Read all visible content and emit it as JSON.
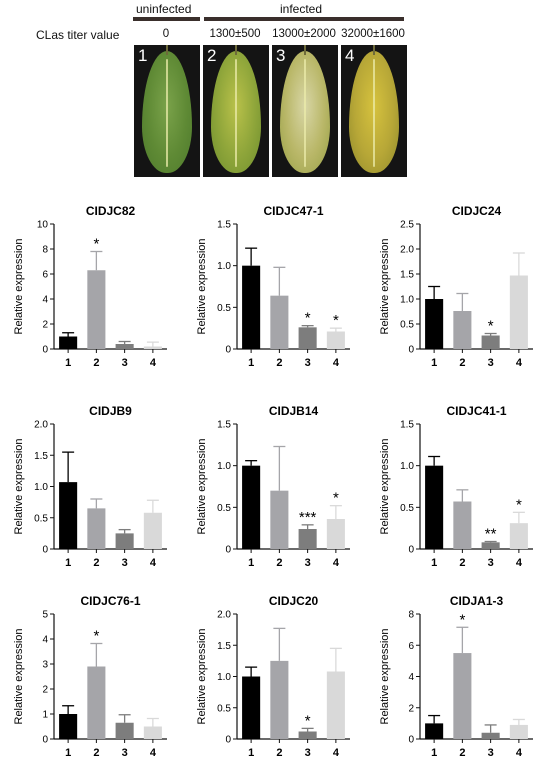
{
  "header": {
    "uninfected_label": "uninfected",
    "infected_label": "infected",
    "titer_label": "CLas titer value",
    "titer_values": [
      "0",
      "1300±500",
      "13000±2000",
      "32000±1600"
    ]
  },
  "leaf_panels": [
    {
      "number": "1",
      "colors": [
        "#7aa24a",
        "#5f8a35",
        "#4e7a2c"
      ]
    },
    {
      "number": "2",
      "colors": [
        "#b9c14a",
        "#8ea53a",
        "#6f8f2e"
      ]
    },
    {
      "number": "3",
      "colors": [
        "#d8d6a6",
        "#b9b768",
        "#97a045"
      ]
    },
    {
      "number": "4",
      "colors": [
        "#d6c23e",
        "#b7a737",
        "#8f8a2c"
      ]
    }
  ],
  "colors": {
    "bar_1": "#000000",
    "bar_2": "#a5a5a9",
    "bar_3": "#7d7d7d",
    "bar_4": "#d9d9d9"
  },
  "chart_data": [
    {
      "type": "bar",
      "title": "CIDJC82",
      "ylabel": "Relative expression",
      "categories": [
        "1",
        "2",
        "3",
        "4"
      ],
      "values": [
        1.0,
        6.3,
        0.4,
        0.2
      ],
      "errors": [
        0.3,
        1.5,
        0.2,
        0.35
      ],
      "significance": [
        "",
        "*",
        "",
        ""
      ],
      "ylim": [
        0,
        10
      ],
      "yticks": [
        "0",
        "2",
        "4",
        "6",
        "8",
        "10"
      ]
    },
    {
      "type": "bar",
      "title": "CIDJC47-1",
      "ylabel": "Relative expression",
      "categories": [
        "1",
        "2",
        "3",
        "4"
      ],
      "values": [
        1.0,
        0.64,
        0.26,
        0.21
      ],
      "errors": [
        0.21,
        0.34,
        0.02,
        0.04
      ],
      "significance": [
        "",
        "",
        "*",
        "*"
      ],
      "ylim": [
        0,
        1.5
      ],
      "yticks": [
        "0",
        "0.5",
        "1.0",
        "1.5"
      ]
    },
    {
      "type": "bar",
      "title": "CIDJC24",
      "ylabel": "Relative expression",
      "categories": [
        "1",
        "2",
        "3",
        "4"
      ],
      "values": [
        1.0,
        0.76,
        0.27,
        1.47
      ],
      "errors": [
        0.25,
        0.35,
        0.04,
        0.45
      ],
      "significance": [
        "",
        "",
        "*",
        ""
      ],
      "ylim": [
        0,
        2.5
      ],
      "yticks": [
        "0",
        "0.5",
        "1.0",
        "1.5",
        "2.0",
        "2.5"
      ]
    },
    {
      "type": "bar",
      "title": "CIDJB9",
      "ylabel": "Relative expression",
      "categories": [
        "1",
        "2",
        "3",
        "4"
      ],
      "values": [
        1.07,
        0.65,
        0.25,
        0.58
      ],
      "errors": [
        0.48,
        0.15,
        0.06,
        0.2
      ],
      "significance": [
        "",
        "",
        "",
        ""
      ],
      "ylim": [
        0,
        2.0
      ],
      "yticks": [
        "0",
        "0.5",
        "1.0",
        "1.5",
        "2.0"
      ]
    },
    {
      "type": "bar",
      "title": "CIDJB14",
      "ylabel": "Relative expression",
      "categories": [
        "1",
        "2",
        "3",
        "4"
      ],
      "values": [
        1.0,
        0.7,
        0.24,
        0.36
      ],
      "errors": [
        0.06,
        0.53,
        0.05,
        0.16
      ],
      "significance": [
        "",
        "",
        "***",
        "*"
      ],
      "ylim": [
        0,
        1.5
      ],
      "yticks": [
        "0",
        "0.5",
        "1.0",
        "1.5"
      ]
    },
    {
      "type": "bar",
      "title": "CIDJC41-1",
      "ylabel": "Relative expression",
      "categories": [
        "1",
        "2",
        "3",
        "4"
      ],
      "values": [
        1.0,
        0.57,
        0.08,
        0.31
      ],
      "errors": [
        0.11,
        0.14,
        0.01,
        0.13
      ],
      "significance": [
        "",
        "",
        "**",
        "*"
      ],
      "ylim": [
        0,
        1.5
      ],
      "yticks": [
        "0",
        "0.5",
        "1.0",
        "1.5"
      ]
    },
    {
      "type": "bar",
      "title": "CIDJC76-1",
      "ylabel": "Relative expression",
      "categories": [
        "1",
        "2",
        "3",
        "4"
      ],
      "values": [
        1.0,
        2.9,
        0.65,
        0.5
      ],
      "errors": [
        0.33,
        0.92,
        0.32,
        0.32
      ],
      "significance": [
        "",
        "*",
        "",
        ""
      ],
      "ylim": [
        0,
        5
      ],
      "yticks": [
        "0",
        "1",
        "2",
        "3",
        "4",
        "5"
      ]
    },
    {
      "type": "bar",
      "title": "CIDJC20",
      "ylabel": "Relative expression",
      "categories": [
        "1",
        "2",
        "3",
        "4"
      ],
      "values": [
        1.0,
        1.25,
        0.12,
        1.08
      ],
      "errors": [
        0.15,
        0.52,
        0.05,
        0.37
      ],
      "significance": [
        "",
        "",
        "*",
        ""
      ],
      "ylim": [
        0,
        2.0
      ],
      "yticks": [
        "0",
        "0.5",
        "1.0",
        "1.5",
        "2.0"
      ]
    },
    {
      "type": "bar",
      "title": "CIDJA1-3",
      "ylabel": "Relative expression",
      "categories": [
        "1",
        "2",
        "3",
        "4"
      ],
      "values": [
        1.0,
        5.5,
        0.4,
        0.9
      ],
      "errors": [
        0.5,
        1.65,
        0.5,
        0.35
      ],
      "significance": [
        "",
        "*",
        "",
        ""
      ],
      "ylim": [
        0,
        8
      ],
      "yticks": [
        "0",
        "2",
        "4",
        "6",
        "8"
      ]
    }
  ]
}
